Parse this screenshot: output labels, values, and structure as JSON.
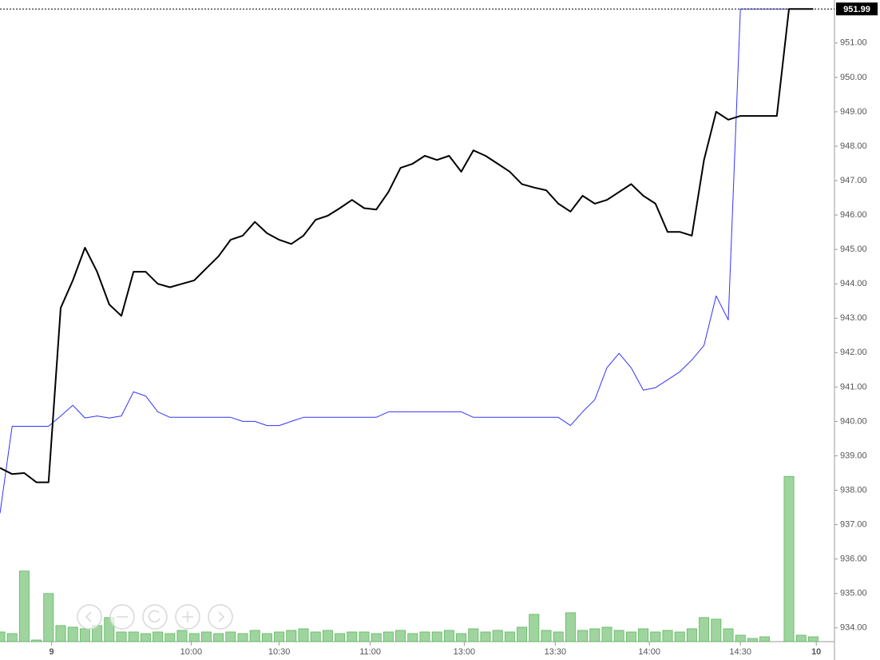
{
  "chart_data": {
    "type": "line",
    "x": [
      0,
      4,
      8,
      12,
      16,
      20,
      24,
      28,
      32,
      36,
      40,
      44,
      48,
      52,
      56,
      60,
      64,
      68,
      72,
      76,
      80,
      84,
      88,
      92,
      96,
      100,
      104,
      108,
      112,
      116,
      120,
      124,
      128,
      132,
      136,
      140,
      144,
      148,
      152,
      156,
      160,
      164,
      168,
      172,
      176,
      180,
      184,
      188,
      192,
      196,
      200,
      204,
      208,
      212,
      216,
      220,
      224,
      228,
      232,
      236,
      240,
      244,
      248,
      252,
      256,
      260,
      264,
      268
    ],
    "xlim": [
      0,
      275
    ],
    "xticks": [
      {
        "value": 17,
        "label": "9"
      },
      {
        "value": 63,
        "label": "10:00"
      },
      {
        "value": 92,
        "label": "10:30"
      },
      {
        "value": 122,
        "label": "11:00"
      },
      {
        "value": 153,
        "label": "13:00"
      },
      {
        "value": 183,
        "label": "13:30"
      },
      {
        "value": 214,
        "label": "14:00"
      },
      {
        "value": 244,
        "label": "14:30"
      },
      {
        "value": 269,
        "label": "10"
      }
    ],
    "ylim": [
      933.6,
      952.25
    ],
    "yticks": [
      {
        "value": 934,
        "label": "934.00"
      },
      {
        "value": 935,
        "label": "935.00"
      },
      {
        "value": 936,
        "label": "936.00"
      },
      {
        "value": 937,
        "label": "937.00"
      },
      {
        "value": 938,
        "label": "938.00"
      },
      {
        "value": 939,
        "label": "939.00"
      },
      {
        "value": 940,
        "label": "940.00"
      },
      {
        "value": 941,
        "label": "941.00"
      },
      {
        "value": 942,
        "label": "942.00"
      },
      {
        "value": 943,
        "label": "943.00"
      },
      {
        "value": 944,
        "label": "944.00"
      },
      {
        "value": 945,
        "label": "945.00"
      },
      {
        "value": 946,
        "label": "946.00"
      },
      {
        "value": 947,
        "label": "947.00"
      },
      {
        "value": 948,
        "label": "948.00"
      },
      {
        "value": 949,
        "label": "949.00"
      },
      {
        "value": 950,
        "label": "950.00"
      },
      {
        "value": 951,
        "label": "951.00"
      }
    ],
    "y2lim": [
      0,
      400
    ],
    "current_price": 951.99,
    "series": [
      {
        "color": "#000000",
        "values": [
          938.65,
          938.47,
          938.5,
          938.23,
          938.23,
          943.3,
          944.1,
          945.05,
          944.35,
          943.4,
          943.07,
          944.35,
          944.35,
          944.0,
          943.9,
          944.0,
          944.1,
          944.45,
          944.8,
          945.28,
          945.4,
          945.8,
          945.47,
          945.28,
          945.16,
          945.4,
          945.86,
          945.98,
          946.2,
          946.44,
          946.2,
          946.16,
          946.67,
          947.37,
          947.49,
          947.72,
          947.6,
          947.72,
          947.26,
          947.88,
          947.72,
          947.49,
          947.26,
          946.9,
          946.8,
          946.72,
          946.33,
          946.1,
          946.56,
          946.33,
          946.44,
          946.67,
          946.9,
          946.56,
          946.33,
          945.51,
          945.51,
          945.4,
          947.6,
          949.0,
          948.77,
          948.88,
          948.88,
          948.88,
          948.88,
          951.99,
          951.99,
          951.99
        ]
      },
      {
        "color": "#3333ff",
        "values": [
          937.33,
          939.86,
          939.86,
          939.86,
          939.86,
          940.16,
          940.47,
          940.1,
          940.16,
          940.1,
          940.16,
          940.86,
          940.74,
          940.28,
          940.12,
          940.12,
          940.12,
          940.12,
          940.12,
          940.12,
          940.0,
          940.0,
          939.88,
          939.88,
          940.0,
          940.12,
          940.12,
          940.12,
          940.12,
          940.12,
          940.12,
          940.12,
          940.28,
          940.28,
          940.28,
          940.28,
          940.28,
          940.28,
          940.28,
          940.12,
          940.12,
          940.12,
          940.12,
          940.12,
          940.12,
          940.12,
          940.12,
          939.88,
          940.28,
          940.63,
          941.56,
          941.98,
          941.56,
          940.91,
          940.98,
          941.21,
          941.44,
          941.79,
          942.21,
          943.65,
          942.95,
          951.99,
          951.99,
          951.99,
          951.99,
          951.99,
          951.99,
          951.99
        ]
      },
      {
        "type": "bar",
        "axis": "y2",
        "color": "#9fd49f",
        "values": [
          6,
          5,
          44,
          1,
          30,
          10,
          9,
          8,
          10,
          15,
          6,
          6,
          5,
          6,
          5,
          7,
          5,
          6,
          5,
          6,
          5,
          7,
          5,
          6,
          7,
          8,
          6,
          7,
          5,
          6,
          6,
          5,
          6,
          7,
          5,
          6,
          6,
          7,
          5,
          8,
          6,
          7,
          6,
          9,
          17,
          7,
          6,
          18,
          7,
          8,
          9,
          7,
          6,
          8,
          6,
          7,
          6,
          8,
          15,
          14,
          8,
          4,
          2,
          3,
          0,
          103,
          4,
          3
        ]
      }
    ]
  }
}
